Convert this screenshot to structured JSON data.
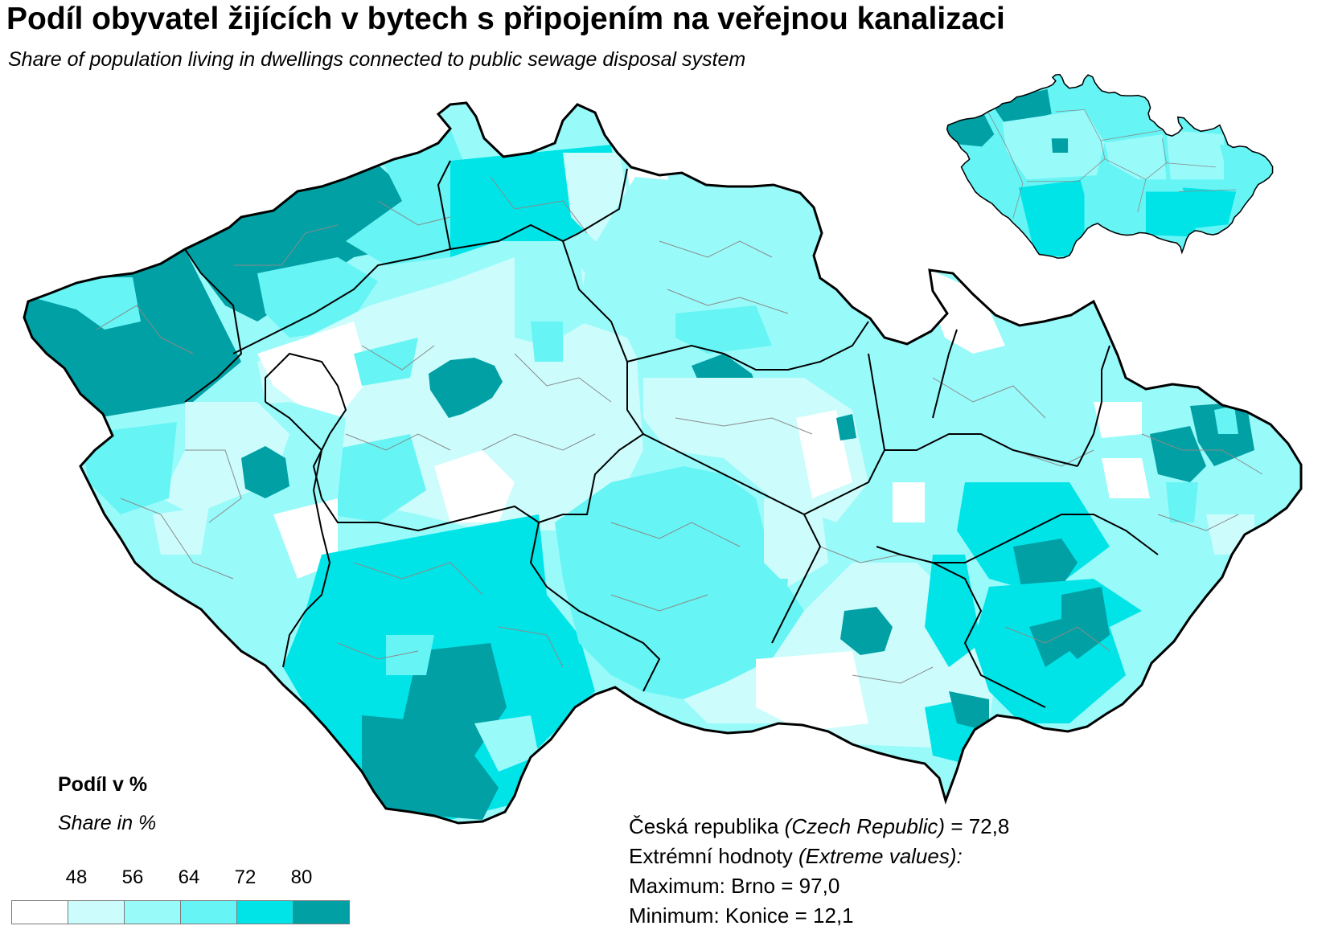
{
  "title": "Podíl obyvatel žijících v bytech s připojením na veřejnou kanalizaci",
  "subtitle": "Share of population living in dwellings connected to public sewage disposal system",
  "legend": {
    "title": "Podíl v %",
    "subtitle": "Share in %",
    "thresholds": [
      "48",
      "56",
      "64",
      "72",
      "80"
    ],
    "colors": [
      "#ffffff",
      "#ccfcfc",
      "#99fafa",
      "#66f4f4",
      "#00e4e8",
      "#00a0a4"
    ]
  },
  "summary": {
    "country_label": "Česká republika",
    "country_label_en": "(Czech Republic)",
    "country_value": "= 72,8",
    "extremes_label": "Extrémní hodnoty",
    "extremes_label_en": "(Extreme values):",
    "maximum_line": "Maximum: Brno = 97,0",
    "minimum_line": "Minimum: Konice  = 12,1"
  },
  "map": {
    "border_color": "#000000",
    "district_line_color": "#8a8a8a"
  }
}
